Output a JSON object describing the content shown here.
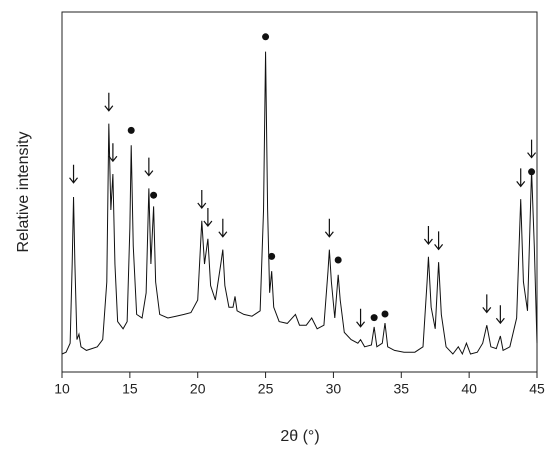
{
  "chart_data": {
    "type": "line",
    "xlabel": "2θ (°)",
    "ylabel": "Relative intensity",
    "xlim": [
      10,
      45
    ],
    "xticks": [
      10,
      15,
      20,
      25,
      30,
      35,
      40,
      45
    ],
    "ylim": [
      0,
      100
    ],
    "color": "#111111",
    "series": [
      {
        "color": "#111111",
        "x": [
          10.0,
          10.3,
          10.6,
          10.75,
          10.85,
          10.95,
          11.1,
          11.25,
          11.4,
          11.8,
          12.2,
          12.6,
          13.0,
          13.3,
          13.45,
          13.6,
          13.75,
          13.9,
          14.1,
          14.5,
          14.8,
          15.0,
          15.1,
          15.25,
          15.5,
          15.9,
          16.2,
          16.4,
          16.55,
          16.75,
          16.9,
          17.2,
          17.8,
          18.4,
          19.0,
          19.5,
          20.0,
          20.3,
          20.5,
          20.75,
          20.95,
          21.3,
          21.7,
          21.85,
          22.0,
          22.3,
          22.6,
          22.75,
          22.9,
          23.4,
          24.0,
          24.6,
          24.85,
          25.0,
          25.15,
          25.3,
          25.45,
          25.6,
          26.0,
          26.6,
          27.2,
          27.5,
          28.0,
          28.4,
          28.8,
          29.3,
          29.6,
          29.7,
          29.85,
          30.1,
          30.35,
          30.5,
          30.8,
          31.3,
          31.8,
          32.0,
          32.3,
          32.8,
          33.0,
          33.2,
          33.6,
          33.8,
          34.0,
          34.5,
          35.2,
          36.0,
          36.6,
          36.9,
          37.0,
          37.2,
          37.5,
          37.75,
          37.95,
          38.3,
          38.8,
          39.2,
          39.5,
          39.8,
          40.1,
          40.6,
          41.0,
          41.3,
          41.6,
          42.0,
          42.3,
          42.5,
          43.0,
          43.5,
          43.8,
          44.0,
          44.3,
          44.6,
          44.8,
          45.0
        ],
        "values": [
          5,
          5.5,
          8,
          30,
          48.6,
          30,
          9,
          10.5,
          7,
          6,
          6.5,
          7,
          9,
          25,
          69,
          45,
          55,
          30,
          14,
          12,
          14,
          40,
          63,
          35,
          16,
          15,
          22,
          51,
          30,
          46,
          25,
          16,
          15,
          15.5,
          16,
          16.5,
          20,
          42,
          30,
          37,
          24,
          20,
          30,
          34,
          24,
          18,
          18,
          21,
          17,
          16,
          15.5,
          17,
          45,
          89,
          45,
          22,
          28,
          18,
          14,
          13.5,
          16,
          13,
          13,
          15,
          12,
          13,
          28,
          34,
          25,
          15,
          27,
          20,
          11,
          9,
          8,
          9,
          7,
          7.5,
          12.5,
          7,
          8,
          13.6,
          7,
          6,
          5.5,
          5.5,
          7,
          25,
          32,
          18,
          12,
          30.5,
          16,
          7,
          5,
          7,
          5,
          8,
          5,
          5.5,
          8,
          13,
          7,
          6.5,
          10,
          6,
          7,
          15,
          48,
          25,
          17,
          56,
          35,
          8
        ]
      }
    ],
    "markers": [
      {
        "shape": "arrow",
        "x": 10.85,
        "y": 52
      },
      {
        "shape": "arrow",
        "x": 13.45,
        "y": 72
      },
      {
        "shape": "arrow",
        "x": 13.75,
        "y": 58
      },
      {
        "shape": "arrow",
        "x": 16.4,
        "y": 54
      },
      {
        "shape": "arrow",
        "x": 20.3,
        "y": 45
      },
      {
        "shape": "arrow",
        "x": 20.75,
        "y": 40
      },
      {
        "shape": "arrow",
        "x": 21.85,
        "y": 37
      },
      {
        "shape": "arrow",
        "x": 29.7,
        "y": 37
      },
      {
        "shape": "arrow",
        "x": 32.0,
        "y": 12
      },
      {
        "shape": "arrow",
        "x": 37.0,
        "y": 35
      },
      {
        "shape": "arrow",
        "x": 37.75,
        "y": 33.5
      },
      {
        "shape": "arrow",
        "x": 41.3,
        "y": 16
      },
      {
        "shape": "arrow",
        "x": 42.3,
        "y": 13
      },
      {
        "shape": "arrow",
        "x": 43.8,
        "y": 51
      },
      {
        "shape": "arrow",
        "x": 44.6,
        "y": 59
      },
      {
        "shape": "dot",
        "x": 15.1,
        "y": 66
      },
      {
        "shape": "dot",
        "x": 16.75,
        "y": 48
      },
      {
        "shape": "dot",
        "x": 25.0,
        "y": 92
      },
      {
        "shape": "dot",
        "x": 25.45,
        "y": 31
      },
      {
        "shape": "dot",
        "x": 30.35,
        "y": 30
      },
      {
        "shape": "dot",
        "x": 33.0,
        "y": 14
      },
      {
        "shape": "dot",
        "x": 33.8,
        "y": 15
      },
      {
        "shape": "dot",
        "x": 44.6,
        "y": 54.5
      }
    ]
  }
}
